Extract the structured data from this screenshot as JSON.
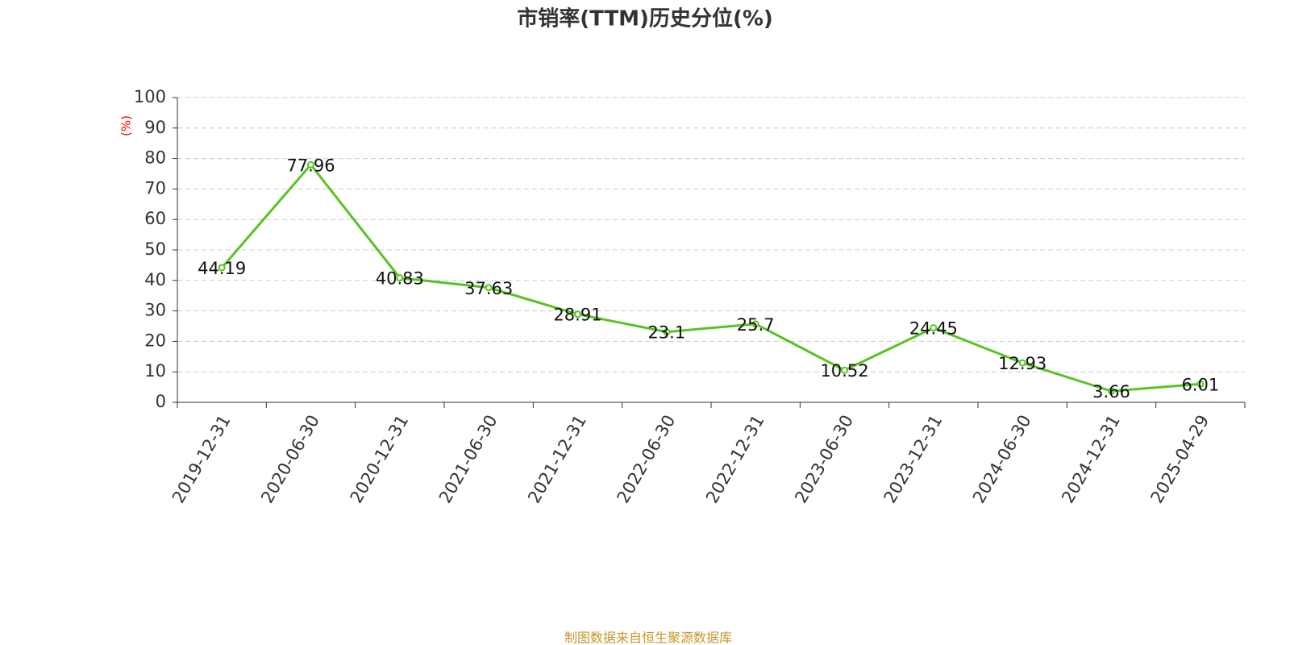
{
  "chart_data": {
    "type": "line",
    "title": "市销率(TTM)历史分位(%)",
    "y_label": "(%)",
    "categories": [
      "2019-12-31",
      "2020-06-30",
      "2020-12-31",
      "2021-06-30",
      "2021-12-31",
      "2022-06-30",
      "2022-12-31",
      "2023-06-30",
      "2023-12-31",
      "2024-06-30",
      "2024-12-31",
      "2025-04-29"
    ],
    "values": [
      44.19,
      77.96,
      40.83,
      37.63,
      28.91,
      23.1,
      25.7,
      10.52,
      24.45,
      12.93,
      3.66,
      6.01
    ],
    "color": "#58c322",
    "ylim": [
      0,
      100
    ],
    "yticks": [
      0,
      10,
      20,
      30,
      40,
      50,
      60,
      70,
      80,
      90,
      100
    ],
    "grid": true,
    "source": "制图数据来自恒生聚源数据库"
  }
}
